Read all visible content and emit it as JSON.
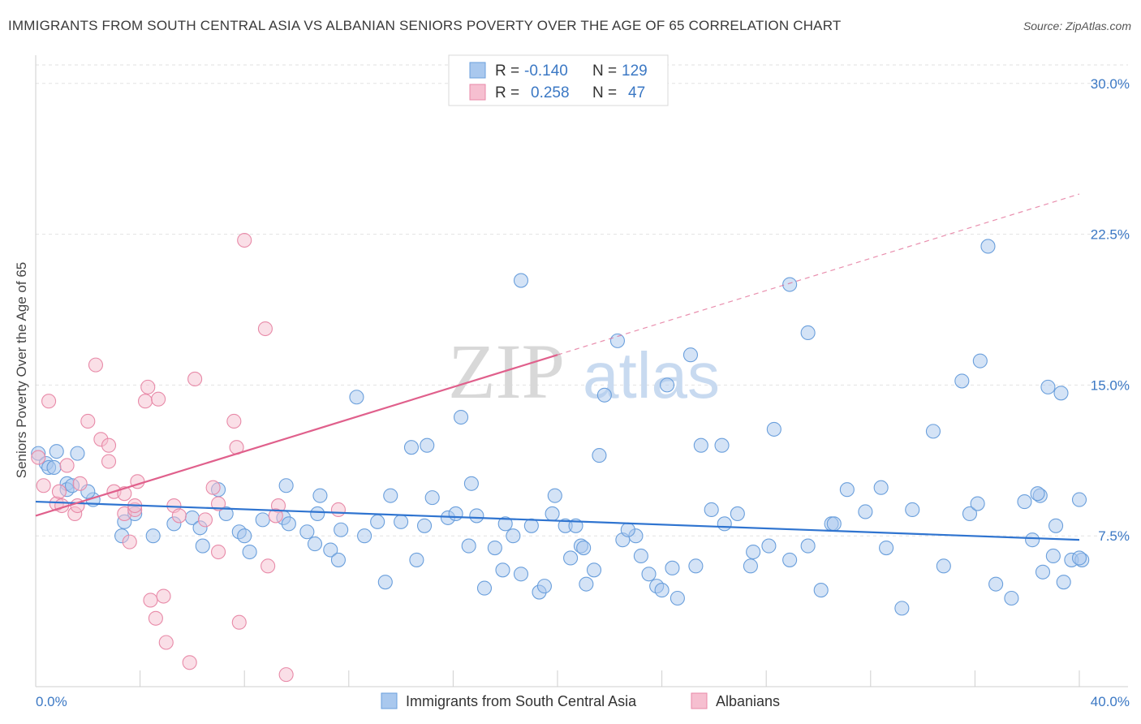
{
  "header": {
    "title": "IMMIGRANTS FROM SOUTH CENTRAL ASIA VS ALBANIAN SENIORS POVERTY OVER THE AGE OF 65 CORRELATION CHART",
    "source": "Source: ZipAtlas.com"
  },
  "watermark": {
    "zip": "ZIP",
    "atlas": "atlas"
  },
  "legend": {
    "r_label": "R =",
    "n_label": "N =",
    "rows": [
      {
        "r": "-0.140",
        "n": "129"
      },
      {
        "r": "0.258",
        "n": "47"
      }
    ]
  },
  "colors": {
    "blue_fill": "#a9c8ee",
    "blue_stroke": "#6a9fdc",
    "blue_line": "#2f74d0",
    "pink_fill": "#f6bfd0",
    "pink_stroke": "#e88aa8",
    "pink_line": "#e0608c",
    "tick_text": "#3b78c4"
  },
  "chart_data": {
    "type": "scatter",
    "ylabel": "Seniors Poverty Over the Age of 65",
    "xlim": [
      0,
      40
    ],
    "ylim": [
      0,
      31
    ],
    "x_tick_labels": [
      "0.0%",
      "40.0%"
    ],
    "y_ticks": [
      7.5,
      15.0,
      22.5,
      30.0
    ],
    "y_tick_labels": [
      "7.5%",
      "15.0%",
      "22.5%",
      "30.0%"
    ],
    "grid": true,
    "legend_position": "top-center",
    "series": [
      {
        "name": "Immigrants from South Central Asia",
        "color": "#6a9fdc",
        "trend": {
          "x": [
            0,
            40
          ],
          "y": [
            9.2,
            7.3
          ],
          "style": "solid"
        },
        "points": [
          [
            0.1,
            11.6
          ],
          [
            0.4,
            11.1
          ],
          [
            0.5,
            10.9
          ],
          [
            0.8,
            11.7
          ],
          [
            0.7,
            10.9
          ],
          [
            1.2,
            10.1
          ],
          [
            1.2,
            9.8
          ],
          [
            1.6,
            11.6
          ],
          [
            1.4,
            10.0
          ],
          [
            2.2,
            9.3
          ],
          [
            2.0,
            9.7
          ],
          [
            3.4,
            8.2
          ],
          [
            3.8,
            8.6
          ],
          [
            3.3,
            7.5
          ],
          [
            4.5,
            7.5
          ],
          [
            5.3,
            8.1
          ],
          [
            6.0,
            8.4
          ],
          [
            6.3,
            7.9
          ],
          [
            6.4,
            7.0
          ],
          [
            7.3,
            8.6
          ],
          [
            7.0,
            9.8
          ],
          [
            7.8,
            7.7
          ],
          [
            8.0,
            7.5
          ],
          [
            8.2,
            6.7
          ],
          [
            8.7,
            8.3
          ],
          [
            9.5,
            8.4
          ],
          [
            9.6,
            10.0
          ],
          [
            9.7,
            8.1
          ],
          [
            10.4,
            7.7
          ],
          [
            10.7,
            7.1
          ],
          [
            10.8,
            8.6
          ],
          [
            10.9,
            9.5
          ],
          [
            11.3,
            6.8
          ],
          [
            11.7,
            7.8
          ],
          [
            11.6,
            6.3
          ],
          [
            12.3,
            14.4
          ],
          [
            12.6,
            7.5
          ],
          [
            13.1,
            8.2
          ],
          [
            13.4,
            5.2
          ],
          [
            13.6,
            9.5
          ],
          [
            14.0,
            8.2
          ],
          [
            14.4,
            11.9
          ],
          [
            14.6,
            6.3
          ],
          [
            14.9,
            8.0
          ],
          [
            15.0,
            12.0
          ],
          [
            15.2,
            9.4
          ],
          [
            15.8,
            8.4
          ],
          [
            16.1,
            8.6
          ],
          [
            16.3,
            13.4
          ],
          [
            16.6,
            7.0
          ],
          [
            16.7,
            10.1
          ],
          [
            16.9,
            8.5
          ],
          [
            17.2,
            4.9
          ],
          [
            17.6,
            6.9
          ],
          [
            17.9,
            5.8
          ],
          [
            18.0,
            8.1
          ],
          [
            18.3,
            7.5
          ],
          [
            18.6,
            5.6
          ],
          [
            19.0,
            8.0
          ],
          [
            19.3,
            4.7
          ],
          [
            19.5,
            5.0
          ],
          [
            19.8,
            8.6
          ],
          [
            19.9,
            9.5
          ],
          [
            20.3,
            8.0
          ],
          [
            20.5,
            6.4
          ],
          [
            20.7,
            8.0
          ],
          [
            20.9,
            7.0
          ],
          [
            21.0,
            6.9
          ],
          [
            21.4,
            5.8
          ],
          [
            21.6,
            11.5
          ],
          [
            21.8,
            14.5
          ],
          [
            23.0,
            7.5
          ],
          [
            23.2,
            6.5
          ],
          [
            23.5,
            5.6
          ],
          [
            23.8,
            5.0
          ],
          [
            24.2,
            15.0
          ],
          [
            24.4,
            5.9
          ],
          [
            24.6,
            4.4
          ],
          [
            25.3,
            6.0
          ],
          [
            25.5,
            12.0
          ],
          [
            25.9,
            8.8
          ],
          [
            26.3,
            12.0
          ],
          [
            26.4,
            8.1
          ],
          [
            26.9,
            8.6
          ],
          [
            27.4,
            6.0
          ],
          [
            27.5,
            6.7
          ],
          [
            28.1,
            7.0
          ],
          [
            28.3,
            12.8
          ],
          [
            28.9,
            6.3
          ],
          [
            29.6,
            7.0
          ],
          [
            30.1,
            4.8
          ],
          [
            30.5,
            8.1
          ],
          [
            31.1,
            9.8
          ],
          [
            31.8,
            8.7
          ],
          [
            32.4,
            9.9
          ],
          [
            32.6,
            6.9
          ],
          [
            33.2,
            3.9
          ],
          [
            33.6,
            8.8
          ],
          [
            34.8,
            6.0
          ],
          [
            35.5,
            15.2
          ],
          [
            36.2,
            16.2
          ],
          [
            36.8,
            5.1
          ],
          [
            37.4,
            4.4
          ],
          [
            38.2,
            7.3
          ],
          [
            38.8,
            14.9
          ],
          [
            39.1,
            8.0
          ],
          [
            39.7,
            6.3
          ],
          [
            40.1,
            6.3
          ],
          [
            35.8,
            8.6
          ],
          [
            37.9,
            9.2
          ],
          [
            38.5,
            9.5
          ],
          [
            40.0,
            9.3
          ],
          [
            40.0,
            6.4
          ],
          [
            22.5,
            7.3
          ],
          [
            30.6,
            8.1
          ],
          [
            39.3,
            14.6
          ],
          [
            38.6,
            5.7
          ],
          [
            39.4,
            5.2
          ],
          [
            36.5,
            21.9
          ],
          [
            38.4,
            9.6
          ],
          [
            22.3,
            17.2
          ],
          [
            21.1,
            5.1
          ],
          [
            22.7,
            7.8
          ],
          [
            24.0,
            4.8
          ],
          [
            25.1,
            16.5
          ],
          [
            34.4,
            12.7
          ],
          [
            36.1,
            9.1
          ],
          [
            39.0,
            6.5
          ],
          [
            28.9,
            20.0
          ],
          [
            29.6,
            17.6
          ],
          [
            18.6,
            20.2
          ]
        ]
      },
      {
        "name": "Albanians",
        "color": "#e88aa8",
        "trend": {
          "x": [
            0,
            20
          ],
          "y": [
            8.5,
            16.5
          ],
          "style": "solid"
        },
        "trend_extension": {
          "x": [
            20,
            40
          ],
          "y": [
            16.5,
            24.5
          ],
          "style": "dashed"
        },
        "points": [
          [
            0.1,
            11.4
          ],
          [
            0.3,
            10.0
          ],
          [
            0.5,
            14.2
          ],
          [
            0.8,
            9.1
          ],
          [
            0.9,
            9.7
          ],
          [
            1.0,
            9.0
          ],
          [
            1.2,
            11.0
          ],
          [
            1.5,
            8.6
          ],
          [
            1.6,
            9.0
          ],
          [
            1.7,
            10.1
          ],
          [
            2.0,
            13.2
          ],
          [
            2.3,
            16.0
          ],
          [
            2.5,
            12.3
          ],
          [
            2.8,
            11.2
          ],
          [
            2.8,
            12.0
          ],
          [
            3.0,
            9.7
          ],
          [
            3.4,
            8.6
          ],
          [
            3.4,
            9.6
          ],
          [
            3.6,
            7.2
          ],
          [
            3.8,
            8.8
          ],
          [
            3.8,
            9.0
          ],
          [
            3.9,
            10.2
          ],
          [
            4.2,
            14.2
          ],
          [
            4.3,
            14.9
          ],
          [
            4.4,
            4.3
          ],
          [
            4.6,
            3.4
          ],
          [
            4.7,
            14.3
          ],
          [
            4.9,
            4.5
          ],
          [
            5.0,
            2.2
          ],
          [
            5.3,
            9.0
          ],
          [
            5.5,
            8.5
          ],
          [
            5.9,
            1.2
          ],
          [
            6.1,
            15.3
          ],
          [
            6.5,
            8.3
          ],
          [
            6.8,
            9.9
          ],
          [
            7.0,
            6.7
          ],
          [
            7.6,
            13.2
          ],
          [
            7.7,
            11.9
          ],
          [
            7.8,
            3.2
          ],
          [
            8.0,
            22.2
          ],
          [
            8.8,
            17.8
          ],
          [
            8.9,
            6.0
          ],
          [
            9.3,
            9.0
          ],
          [
            9.6,
            0.6
          ],
          [
            9.2,
            8.5
          ],
          [
            11.6,
            8.8
          ],
          [
            7.0,
            9.1
          ]
        ]
      }
    ]
  }
}
